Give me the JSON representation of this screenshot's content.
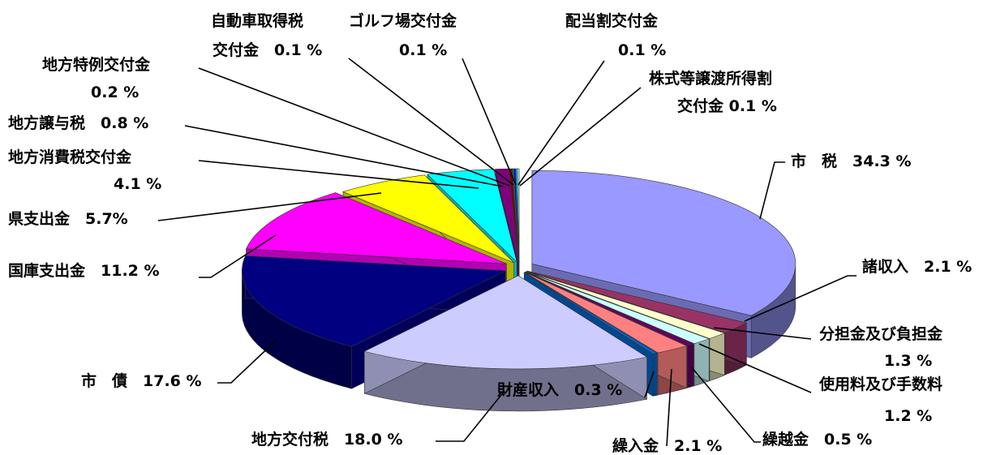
{
  "chart_data": {
    "type": "pie",
    "style": "3d-exploded",
    "slices": [
      {
        "name": "市　税",
        "value": 34.3,
        "unit": "%",
        "color": "#9999ff",
        "label_lines": [
          "市　税　34.3 %"
        ]
      },
      {
        "name": "諸収入",
        "value": 2.1,
        "unit": "%",
        "color": "#993366",
        "label_lines": [
          "諸収入　2.1 %"
        ]
      },
      {
        "name": "分担金及び負担金",
        "value": 1.3,
        "unit": "%",
        "color": "#ffffcc",
        "label_lines": [
          "分担金及び負担金",
          "1.3 %"
        ]
      },
      {
        "name": "使用料及び手数料",
        "value": 1.2,
        "unit": "%",
        "color": "#ccffff",
        "label_lines": [
          "使用料及び手数料",
          "1.2 %"
        ]
      },
      {
        "name": "繰越金",
        "value": 0.5,
        "unit": "%",
        "color": "#660066",
        "label_lines": [
          "繰越金　0.5 %"
        ]
      },
      {
        "name": "繰入金",
        "value": 2.1,
        "unit": "%",
        "color": "#ff8080",
        "label_lines": [
          "繰入金　2.1 %"
        ]
      },
      {
        "name": "財産収入",
        "value": 0.3,
        "unit": "%",
        "color": "#0066cc",
        "label_lines": [
          "財産収入　0.3 %"
        ]
      },
      {
        "name": "地方交付税",
        "value": 18.0,
        "unit": "%",
        "color": "#ccccff",
        "label_lines": [
          "地方交付税　18.0 %"
        ]
      },
      {
        "name": "市　債",
        "value": 17.6,
        "unit": "%",
        "color": "#000080",
        "label_lines": [
          "市　債　17.6 %"
        ]
      },
      {
        "name": "国庫支出金",
        "value": 11.2,
        "unit": "%",
        "color": "#ff00ff",
        "label_lines": [
          "国庫支出金　11.2 %"
        ]
      },
      {
        "name": "県支出金",
        "value": 5.7,
        "unit": "%",
        "color": "#ffff00",
        "label_lines": [
          "県支出金　5.7%"
        ]
      },
      {
        "name": "地方消費税交付金",
        "value": 4.1,
        "unit": "%",
        "color": "#00ffff",
        "label_lines": [
          "地方消費税交付金",
          "4.1 %"
        ]
      },
      {
        "name": "地方譲与税",
        "value": 0.8,
        "unit": "%",
        "color": "#800080",
        "label_lines": [
          "地方譲与税　0.8 %"
        ]
      },
      {
        "name": "地方特例交付金",
        "value": 0.2,
        "unit": "%",
        "color": "#800000",
        "label_lines": [
          "地方特例交付金",
          "0.2 %"
        ]
      },
      {
        "name": "自動車取得税交付金",
        "value": 0.1,
        "unit": "%",
        "color": "#008080",
        "label_lines": [
          "自動車取得税",
          "交付金　0.1 %"
        ]
      },
      {
        "name": "ゴルフ場交付金",
        "value": 0.1,
        "unit": "%",
        "color": "#0000ff",
        "label_lines": [
          "ゴルフ場交付金",
          "0.1 %"
        ]
      },
      {
        "name": "配当割交付金",
        "value": 0.1,
        "unit": "%",
        "color": "#00ccff",
        "label_lines": [
          "配当割交付金",
          "0.1 %"
        ]
      },
      {
        "name": "株式等譲渡所得割交付金",
        "value": 0.1,
        "unit": "%",
        "color": "#ccffcc",
        "label_lines": [
          "株式等譲渡所得割",
          "交付金 0.1 %"
        ]
      }
    ]
  }
}
